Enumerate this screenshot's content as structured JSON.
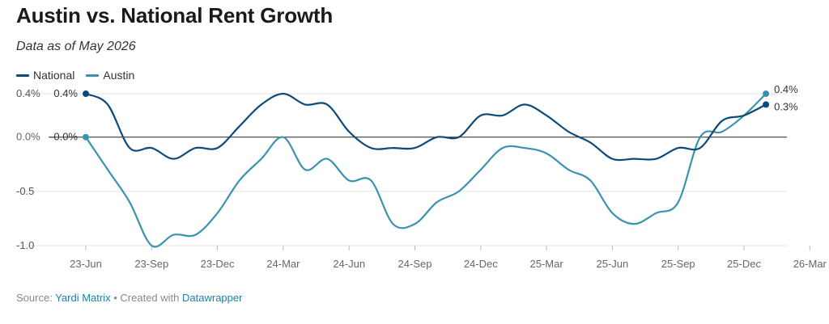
{
  "title": "Austin vs. National Rent Growth",
  "subtitle": "Data as of May 2026",
  "footer": {
    "source_label": "Source:",
    "source_name": "Yardi Matrix",
    "separator": "•",
    "created_label": "Created with",
    "tool_name": "Datawrapper"
  },
  "colors": {
    "national": "#0d4a7a",
    "austin": "#3a93ae",
    "link": "#1d81a2"
  },
  "chart_data": {
    "type": "line",
    "ylim": [
      -1.0,
      0.4
    ],
    "yticks": [
      {
        "value": 0.4,
        "label": "0.4%"
      },
      {
        "value": 0.0,
        "label": "0.0%"
      },
      {
        "value": -0.5,
        "label": "-0.5"
      },
      {
        "value": -1.0,
        "label": "-1.0"
      }
    ],
    "xticks": [
      "23-Jun",
      "23-Sep",
      "23-Dec",
      "24-Mar",
      "24-Jun",
      "24-Sep",
      "24-Dec",
      "25-Mar",
      "25-Jun",
      "25-Sep",
      "25-Dec",
      "26-Mar"
    ],
    "first_tick_index": 0,
    "tick_step": 3,
    "series": [
      {
        "name": "National",
        "color": "#0d4a7a",
        "start_label": "0.4%",
        "start_label_2": "-0.0%",
        "end_label": "0.3%",
        "values": [
          0.4,
          0.3,
          -0.1,
          -0.1,
          -0.2,
          -0.1,
          -0.1,
          0.1,
          0.3,
          0.4,
          0.3,
          0.3,
          0.05,
          -0.1,
          -0.1,
          -0.1,
          0.0,
          0.0,
          0.2,
          0.2,
          0.3,
          0.2,
          0.05,
          -0.05,
          -0.2,
          -0.2,
          -0.2,
          -0.1,
          -0.1,
          0.15,
          0.2,
          0.3
        ]
      },
      {
        "name": "Austin",
        "color": "#3a93ae",
        "end_label": "0.4%",
        "values": [
          0.0,
          -0.3,
          -0.6,
          -1.0,
          -0.9,
          -0.9,
          -0.7,
          -0.4,
          -0.2,
          0.0,
          -0.3,
          -0.2,
          -0.4,
          -0.4,
          -0.8,
          -0.8,
          -0.6,
          -0.5,
          -0.3,
          -0.1,
          -0.1,
          -0.15,
          -0.3,
          -0.4,
          -0.7,
          -0.8,
          -0.7,
          -0.6,
          0.0,
          0.05,
          0.2,
          0.4
        ]
      }
    ]
  }
}
